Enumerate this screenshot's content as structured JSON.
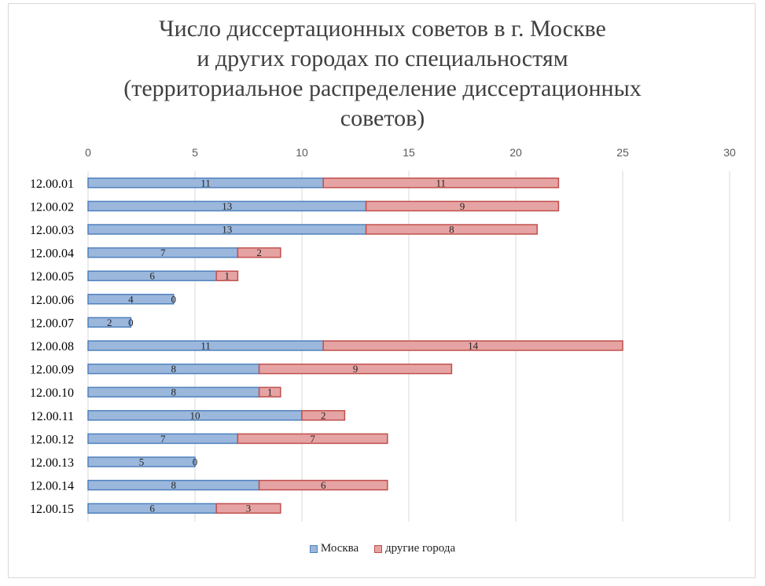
{
  "chart_data": {
    "type": "bar",
    "orientation": "horizontal",
    "stacked": true,
    "title": [
      "Число диссертационных советов в г. Москве",
      "и других городах по специальностям",
      "(территориальное распределение диссертационных",
      "советов)"
    ],
    "categories": [
      "12.00.01",
      "12.00.02",
      "12.00.03",
      "12.00.04",
      "12.00.05",
      "12.00.06",
      "12.00.07",
      "12.00.08",
      "12.00.09",
      "12.00.10",
      "12.00.11",
      "12.00.12",
      "12.00.13",
      "12.00.14",
      "12.00.15"
    ],
    "series": [
      {
        "name": "Москва",
        "color": "#9bb7dc",
        "border": "#4f81bd",
        "values": [
          11,
          13,
          13,
          7,
          6,
          4,
          2,
          11,
          8,
          8,
          10,
          7,
          5,
          8,
          6
        ]
      },
      {
        "name": "другие города",
        "color": "#e6a3a3",
        "border": "#c0504d",
        "values": [
          11,
          9,
          8,
          2,
          1,
          0,
          0,
          14,
          9,
          1,
          2,
          7,
          0,
          6,
          3
        ]
      }
    ],
    "xlim": [
      0,
      30
    ],
    "xticks": [
      "0",
      "5",
      "10",
      "15",
      "20",
      "25",
      "30"
    ],
    "grid": true,
    "legend_position": "bottom"
  }
}
